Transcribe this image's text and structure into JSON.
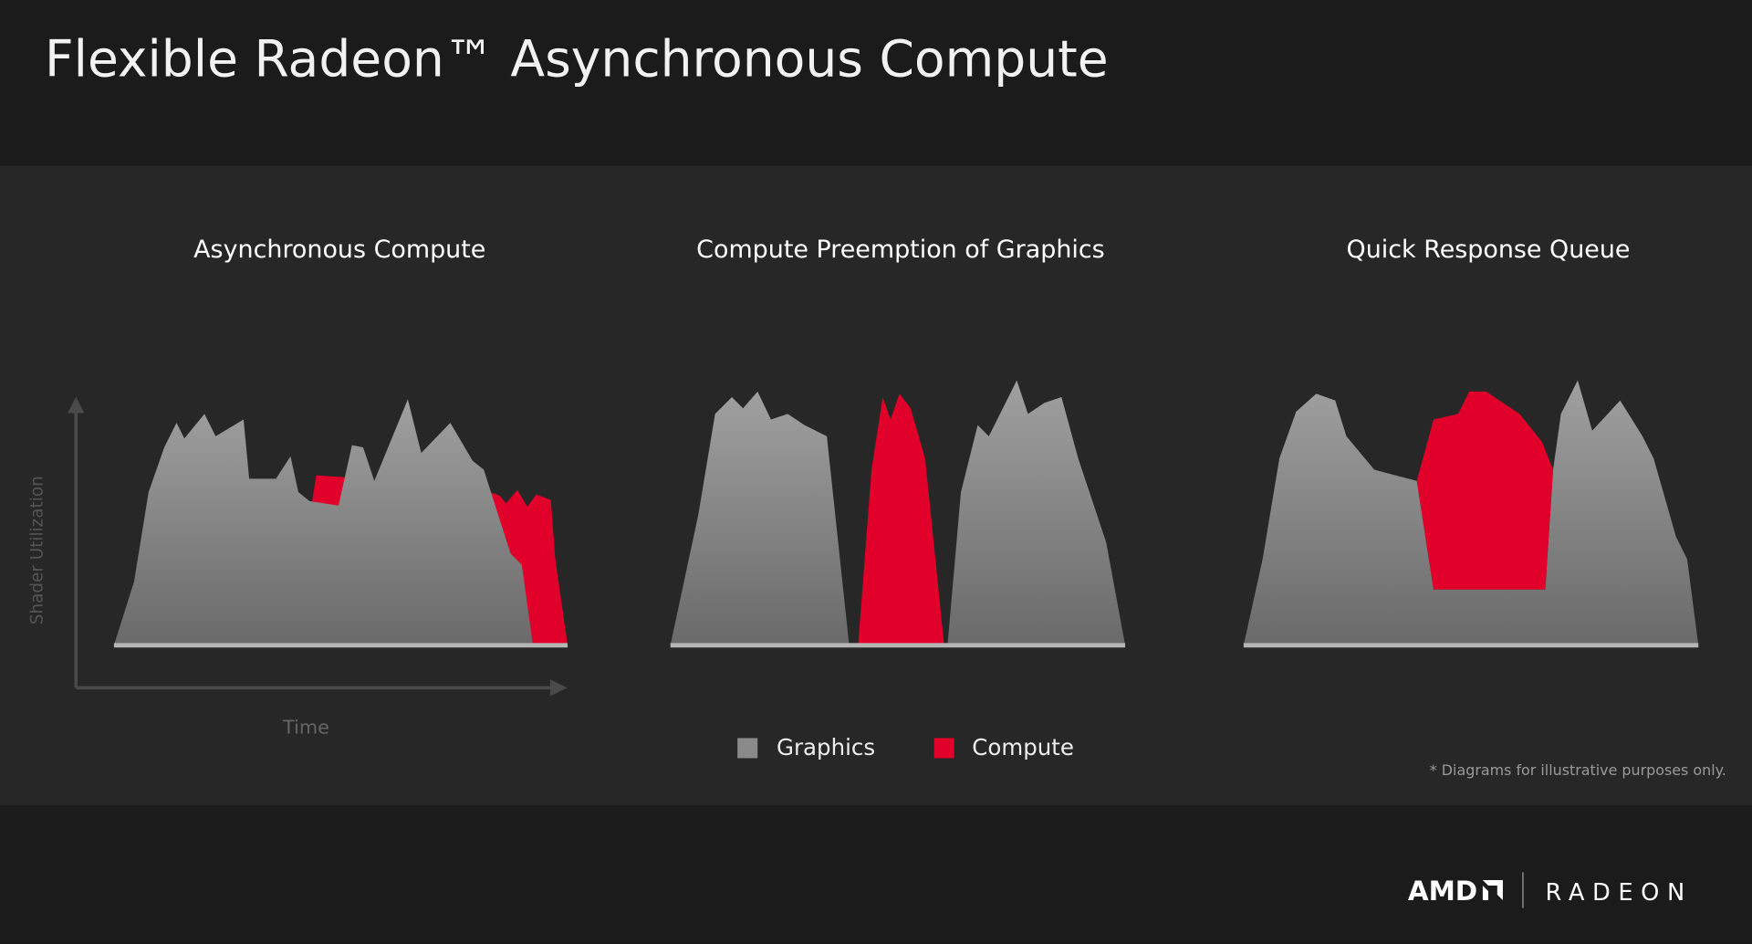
{
  "title": "Flexible Radeon™ Asynchronous Compute",
  "panels": [
    {
      "title": "Asynchronous Compute"
    },
    {
      "title": "Compute Preemption of Graphics"
    },
    {
      "title": "Quick Response Queue"
    }
  ],
  "axes": {
    "y_label": "Shader Utilization",
    "x_label": "Time"
  },
  "legend": [
    {
      "label": "Graphics",
      "color": "#8a8a8a"
    },
    {
      "label": "Compute",
      "color": "#e0002a"
    }
  ],
  "footnote": "* Diagrams for illustrative purposes only.",
  "brand": {
    "amd": "AMD",
    "radeon": "RADEON"
  },
  "colors": {
    "background": "#1b1b1b",
    "band": "#2a2a2a",
    "compute": "#e0002a",
    "graphics_top": "#a0a0a0",
    "graphics_bottom": "#6a6a6a"
  }
}
